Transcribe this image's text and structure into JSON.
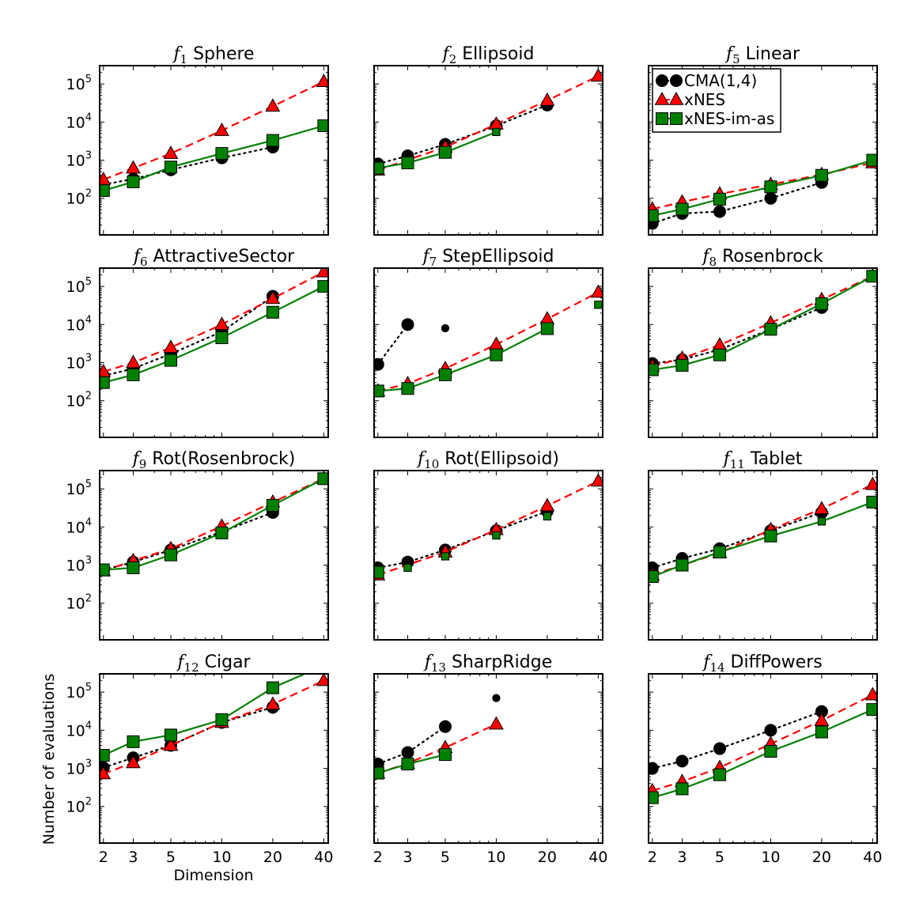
{
  "figure": {
    "xlabel": "Dimension",
    "ylabel": "Number of evaluations"
  },
  "legend": {
    "placement": "top-left of f5 panel",
    "entries": [
      {
        "name": "CMA(1,4)",
        "marker": "circle",
        "color": "#000000",
        "line": "dotted"
      },
      {
        "name": "xNES",
        "marker": "triangle",
        "color": "#ff0000",
        "line": "dashed"
      },
      {
        "name": "xNES-im-as",
        "marker": "square",
        "color": "#008000",
        "line": "solid"
      }
    ]
  },
  "chart_data": [
    {
      "type": "line",
      "func": "f",
      "sub": "1",
      "name": "Sphere",
      "x": [
        2,
        3,
        5,
        10,
        20,
        40
      ],
      "xscale": "log",
      "yscale": "log",
      "xticks": [
        "2",
        "3",
        "5",
        "10",
        "20",
        "40"
      ],
      "yticks": [
        {
          "base": "10",
          "exp": "2"
        },
        {
          "base": "10",
          "exp": "3"
        },
        {
          "base": "10",
          "exp": "4"
        },
        {
          "base": "10",
          "exp": "5"
        }
      ],
      "ylim": [
        11,
        300000
      ],
      "series": [
        {
          "name": "CMA(1,4)",
          "values": [
            230,
            320,
            560,
            1150,
            2200,
            null
          ],
          "small": []
        },
        {
          "name": "xNES",
          "values": [
            310,
            620,
            1500,
            6000,
            26000,
            115000
          ],
          "small": []
        },
        {
          "name": "xNES-im-as",
          "values": [
            160,
            270,
            660,
            1500,
            3300,
            8000
          ],
          "small": []
        }
      ]
    },
    {
      "type": "line",
      "func": "f",
      "sub": "2",
      "name": "Ellipsoid",
      "x": [
        2,
        3,
        5,
        10,
        20,
        40
      ],
      "xscale": "log",
      "yscale": "log",
      "xticks": [
        "2",
        "3",
        "5",
        "10",
        "20",
        "40"
      ],
      "yticks": [],
      "ylim": [
        11,
        300000
      ],
      "series": [
        {
          "name": "CMA(1,4)",
          "values": [
            800,
            1300,
            2600,
            8000,
            28000,
            null
          ],
          "small": []
        },
        {
          "name": "xNES",
          "values": [
            550,
            null,
            2200,
            8800,
            37000,
            160000
          ],
          "small": []
        },
        {
          "name": "xNES-im-as",
          "values": [
            620,
            850,
            1600,
            5500,
            null,
            null
          ],
          "small": [
            3
          ]
        }
      ]
    },
    {
      "type": "line",
      "func": "f",
      "sub": "5",
      "name": "Linear",
      "x": [
        2,
        3,
        5,
        10,
        20,
        40
      ],
      "xscale": "log",
      "yscale": "log",
      "xticks": [
        "2",
        "3",
        "5",
        "10",
        "20",
        "40"
      ],
      "yticks": [],
      "ylim": [
        11,
        300000
      ],
      "series": [
        {
          "name": "CMA(1,4)",
          "values": [
            22,
            40,
            45,
            100,
            260,
            null
          ],
          "small": []
        },
        {
          "name": "xNES",
          "values": [
            52,
            80,
            130,
            230,
            420,
            850
          ],
          "small": []
        },
        {
          "name": "xNES-im-as",
          "values": [
            35,
            52,
            95,
            200,
            400,
            1000
          ],
          "small": []
        }
      ]
    },
    {
      "type": "line",
      "func": "f",
      "sub": "6",
      "name": "AttractiveSector",
      "x": [
        2,
        3,
        5,
        10,
        20,
        40
      ],
      "xscale": "log",
      "yscale": "log",
      "xticks": [
        "2",
        "3",
        "5",
        "10",
        "20",
        "40"
      ],
      "yticks": [
        {
          "base": "10",
          "exp": "2"
        },
        {
          "base": "10",
          "exp": "3"
        },
        {
          "base": "10",
          "exp": "4"
        },
        {
          "base": "10",
          "exp": "5"
        }
      ],
      "ylim": [
        11,
        300000
      ],
      "series": [
        {
          "name": "CMA(1,4)",
          "values": [
            450,
            700,
            1700,
            6500,
            55000,
            null
          ],
          "small": []
        },
        {
          "name": "xNES",
          "values": [
            580,
            1000,
            2500,
            10000,
            48000,
            240000
          ],
          "small": []
        },
        {
          "name": "xNES-im-as",
          "values": [
            300,
            480,
            1150,
            4500,
            21000,
            100000
          ],
          "small": []
        }
      ]
    },
    {
      "type": "line",
      "func": "f",
      "sub": "7",
      "name": "StepEllipsoid",
      "x": [
        2,
        3,
        5,
        10,
        20,
        40
      ],
      "xscale": "log",
      "yscale": "log",
      "xticks": [
        "2",
        "3",
        "5",
        "10",
        "20",
        "40"
      ],
      "yticks": [],
      "ylim": [
        11,
        300000
      ],
      "series": [
        {
          "name": "CMA(1,4)",
          "values": [
            900,
            10000,
            null,
            null,
            null,
            null
          ],
          "small": [],
          "isolated": [
            {
              "x": 5,
              "y": 8000,
              "small": true
            }
          ]
        },
        {
          "name": "xNES",
          "values": [
            180,
            280,
            700,
            3000,
            14000,
            70000
          ],
          "small": []
        },
        {
          "name": "xNES-im-as",
          "values": [
            180,
            210,
            480,
            1600,
            7800,
            null
          ],
          "small": [],
          "isolated": [
            {
              "x": 40,
              "y": 33000,
              "small": true
            }
          ]
        }
      ]
    },
    {
      "type": "line",
      "func": "f",
      "sub": "8",
      "name": "Rosenbrock",
      "x": [
        2,
        3,
        5,
        10,
        20,
        40
      ],
      "xscale": "log",
      "yscale": "log",
      "xticks": [
        "2",
        "3",
        "5",
        "10",
        "20",
        "40"
      ],
      "yticks": [],
      "ylim": [
        11,
        300000
      ],
      "series": [
        {
          "name": "CMA(1,4)",
          "values": [
            950,
            1200,
            2200,
            7500,
            28000,
            null
          ],
          "small": []
        },
        {
          "name": "xNES",
          "values": [
            800,
            1300,
            2900,
            11000,
            45000,
            185000
          ],
          "small": []
        },
        {
          "name": "xNES-im-as",
          "values": [
            650,
            850,
            1600,
            7500,
            35000,
            185000
          ],
          "small": []
        }
      ]
    },
    {
      "type": "line",
      "func": "f",
      "sub": "9",
      "name": "Rot(Rosenbrock)",
      "x": [
        2,
        3,
        5,
        10,
        20,
        40
      ],
      "xscale": "log",
      "yscale": "log",
      "xticks": [
        "2",
        "3",
        "5",
        "10",
        "20",
        "40"
      ],
      "yticks": [
        {
          "base": "10",
          "exp": "2"
        },
        {
          "base": "10",
          "exp": "3"
        },
        {
          "base": "10",
          "exp": "4"
        },
        {
          "base": "10",
          "exp": "5"
        }
      ],
      "ylim": [
        11,
        300000
      ],
      "series": [
        {
          "name": "CMA(1,4)",
          "values": [
            750,
            1200,
            2500,
            7500,
            24000,
            null
          ],
          "small": []
        },
        {
          "name": "xNES",
          "values": [
            700,
            1300,
            2700,
            10500,
            45000,
            185000
          ],
          "small": []
        },
        {
          "name": "xNES-im-as",
          "values": [
            750,
            850,
            1850,
            7000,
            37000,
            185000
          ],
          "small": []
        }
      ]
    },
    {
      "type": "line",
      "func": "f",
      "sub": "10",
      "name": "Rot(Ellipsoid)",
      "x": [
        2,
        3,
        5,
        10,
        20,
        40
      ],
      "xscale": "log",
      "yscale": "log",
      "xticks": [
        "2",
        "3",
        "5",
        "10",
        "20",
        "40"
      ],
      "yticks": [],
      "ylim": [
        11,
        300000
      ],
      "series": [
        {
          "name": "CMA(1,4)",
          "values": [
            850,
            1200,
            2500,
            8000,
            26000,
            null
          ],
          "small": []
        },
        {
          "name": "xNES",
          "values": [
            550,
            null,
            2200,
            8500,
            36000,
            160000
          ],
          "small": []
        },
        {
          "name": "xNES-im-as",
          "values": [
            null,
            null,
            null,
            null,
            null,
            null
          ],
          "small": [],
          "isolated": [
            {
              "x": 2,
              "y": 650,
              "small": false
            },
            {
              "x": 3,
              "y": 850,
              "small": true
            },
            {
              "x": 5,
              "y": 1700,
              "small": true
            },
            {
              "x": 10,
              "y": 6000,
              "small": true
            },
            {
              "x": 20,
              "y": 19000,
              "small": true
            }
          ]
        }
      ]
    },
    {
      "type": "line",
      "func": "f",
      "sub": "11",
      "name": "Tablet",
      "x": [
        2,
        3,
        5,
        10,
        20,
        40
      ],
      "xscale": "log",
      "yscale": "log",
      "xticks": [
        "2",
        "3",
        "5",
        "10",
        "20",
        "40"
      ],
      "yticks": [],
      "ylim": [
        11,
        300000
      ],
      "series": [
        {
          "name": "CMA(1,4)",
          "values": [
            850,
            1500,
            2700,
            8000,
            24000,
            null
          ],
          "small": []
        },
        {
          "name": "xNES",
          "values": [
            550,
            null,
            2100,
            8500,
            30000,
            130000
          ],
          "small": []
        },
        {
          "name": "xNES-im-as",
          "values": [
            500,
            1000,
            2200,
            5800,
            14000,
            45000
          ],
          "small": [
            4
          ]
        }
      ]
    },
    {
      "type": "line",
      "func": "f",
      "sub": "12",
      "name": "Cigar",
      "x": [
        2,
        3,
        5,
        10,
        20,
        40
      ],
      "xscale": "log",
      "yscale": "log",
      "xticks": [
        "2",
        "3",
        "5",
        "10",
        "20",
        "40"
      ],
      "yticks": [
        {
          "base": "10",
          "exp": "2"
        },
        {
          "base": "10",
          "exp": "3"
        },
        {
          "base": "10",
          "exp": "4"
        },
        {
          "base": "10",
          "exp": "5"
        }
      ],
      "ylim": [
        11,
        300000
      ],
      "series": [
        {
          "name": "CMA(1,4)",
          "values": [
            1050,
            1900,
            4000,
            16000,
            40000,
            null
          ],
          "small": []
        },
        {
          "name": "xNES",
          "values": [
            720,
            1400,
            4000,
            16000,
            48000,
            200000
          ],
          "small": []
        },
        {
          "name": "xNES-im-as",
          "values": [
            2200,
            5000,
            7500,
            19000,
            130000,
            500000
          ],
          "small": []
        }
      ]
    },
    {
      "type": "line",
      "func": "f",
      "sub": "13",
      "name": "SharpRidge",
      "x": [
        2,
        3,
        5,
        10,
        20,
        40
      ],
      "xscale": "log",
      "yscale": "log",
      "xticks": [
        "2",
        "3",
        "5",
        "10",
        "20",
        "40"
      ],
      "yticks": [],
      "ylim": [
        11,
        300000
      ],
      "series": [
        {
          "name": "CMA(1,4)",
          "values": [
            1300,
            2600,
            12500,
            null,
            null,
            null
          ],
          "small": [],
          "isolated": [
            {
              "x": 10,
              "y": 70000,
              "small": true
            }
          ]
        },
        {
          "name": "xNES",
          "values": [
            750,
            1350,
            3500,
            14500,
            null,
            null
          ],
          "small": []
        },
        {
          "name": "xNES-im-as",
          "values": [
            750,
            1300,
            2300,
            null,
            null,
            null
          ],
          "small": []
        }
      ]
    },
    {
      "type": "line",
      "func": "f",
      "sub": "14",
      "name": "DiffPowers",
      "x": [
        2,
        3,
        5,
        10,
        20,
        40
      ],
      "xscale": "log",
      "yscale": "log",
      "xticks": [
        "2",
        "3",
        "5",
        "10",
        "20",
        "40"
      ],
      "yticks": [],
      "ylim": [
        11,
        300000
      ],
      "series": [
        {
          "name": "CMA(1,4)",
          "values": [
            1000,
            1550,
            3300,
            10000,
            31000,
            null
          ],
          "small": []
        },
        {
          "name": "xNES",
          "values": [
            260,
            450,
            1050,
            4400,
            18000,
            85000
          ],
          "small": []
        },
        {
          "name": "xNES-im-as",
          "values": [
            170,
            290,
            680,
            2800,
            9000,
            35000
          ],
          "small": []
        }
      ]
    }
  ]
}
